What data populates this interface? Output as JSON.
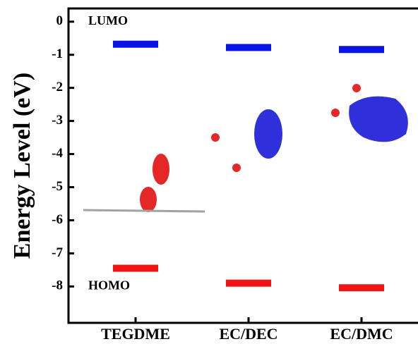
{
  "chart_data": {
    "type": "level",
    "y_label": "Energy Level (eV)",
    "categories": [
      "TEGDME",
      "EC/DEC",
      "EC/DMC"
    ],
    "series": [
      {
        "name": "LUMO",
        "color": "#0a14e6",
        "values": [
          -0.68,
          -0.78,
          -0.84
        ]
      },
      {
        "name": "HOMO",
        "color": "#f01414",
        "values": [
          -7.45,
          -7.9,
          -8.04
        ]
      }
    ],
    "ylim": [
      -9.1,
      0.4
    ],
    "yticks": [
      0,
      -1,
      -2,
      -3,
      -4,
      -5,
      -6,
      -7,
      -8
    ]
  }
}
